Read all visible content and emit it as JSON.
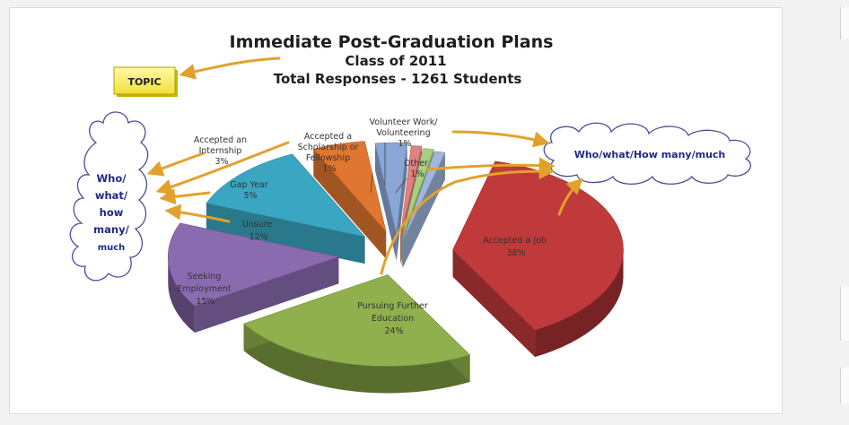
{
  "slide": {
    "title_lines": [
      "Immediate Post-Graduation Plans",
      "Class of 2011",
      "Total Responses - 1261 Students"
    ],
    "topic_label": "TOPIC",
    "cloud_right_text": "Who/what/How many/much",
    "cloud_left_lines": [
      "Who/",
      "what/",
      "how",
      "many/",
      "much"
    ]
  },
  "chart_data": {
    "type": "pie",
    "title": "Immediate Post-Graduation Plans",
    "subtitle": "Class of 2011 — Total Responses - 1261 Students",
    "series": [
      {
        "name": "",
        "slices": [
          {
            "label": "Accepted a Job",
            "value": 38,
            "display": "38%",
            "color": "#c0393b"
          },
          {
            "label": "Pursuing Further Education",
            "value": 24,
            "display": "24%",
            "color": "#8fb04c"
          },
          {
            "label": "Seeking Employment",
            "value": 15,
            "display": "15%",
            "color": "#8b6bb0"
          },
          {
            "label": "Unsure",
            "value": 12,
            "display": "12%",
            "color": "#3aa6c1"
          },
          {
            "label": "Gap Year",
            "value": 5,
            "display": "5%",
            "color": "#e0762f"
          },
          {
            "label": "Accepted an Internship",
            "value": 3,
            "display": "3%",
            "color": "#8aa6d6"
          },
          {
            "label": "Accepted a Scholarship or Fellowship",
            "value": 1,
            "display": "1%",
            "color": "#e08080"
          },
          {
            "label": "Volunteer Work/ Volunteering",
            "value": 1,
            "display": "1%",
            "color": "#a9cf7f"
          },
          {
            "label": "Other",
            "value": 1,
            "display": "1%",
            "color": "#9fb6dd"
          }
        ]
      }
    ],
    "legend": "none",
    "labels": [
      {
        "lines": [
          "Accepted a Job",
          "38%"
        ]
      },
      {
        "lines": [
          "Pursuing Further",
          "Education",
          "24%"
        ]
      },
      {
        "lines": [
          "Seeking",
          "Employment",
          "15%"
        ]
      },
      {
        "lines": [
          "Unsure",
          "12%"
        ]
      },
      {
        "lines": [
          "Gap Year",
          "5%"
        ]
      },
      {
        "lines": [
          "Accepted an",
          "Internship",
          "3%"
        ]
      },
      {
        "lines": [
          "Accepted a",
          "Scholarship or",
          "Fellowship",
          "1%"
        ]
      },
      {
        "lines": [
          "Volunteer Work/",
          "Volunteering",
          "1%"
        ]
      },
      {
        "lines": [
          "Other",
          "1%"
        ]
      }
    ]
  }
}
